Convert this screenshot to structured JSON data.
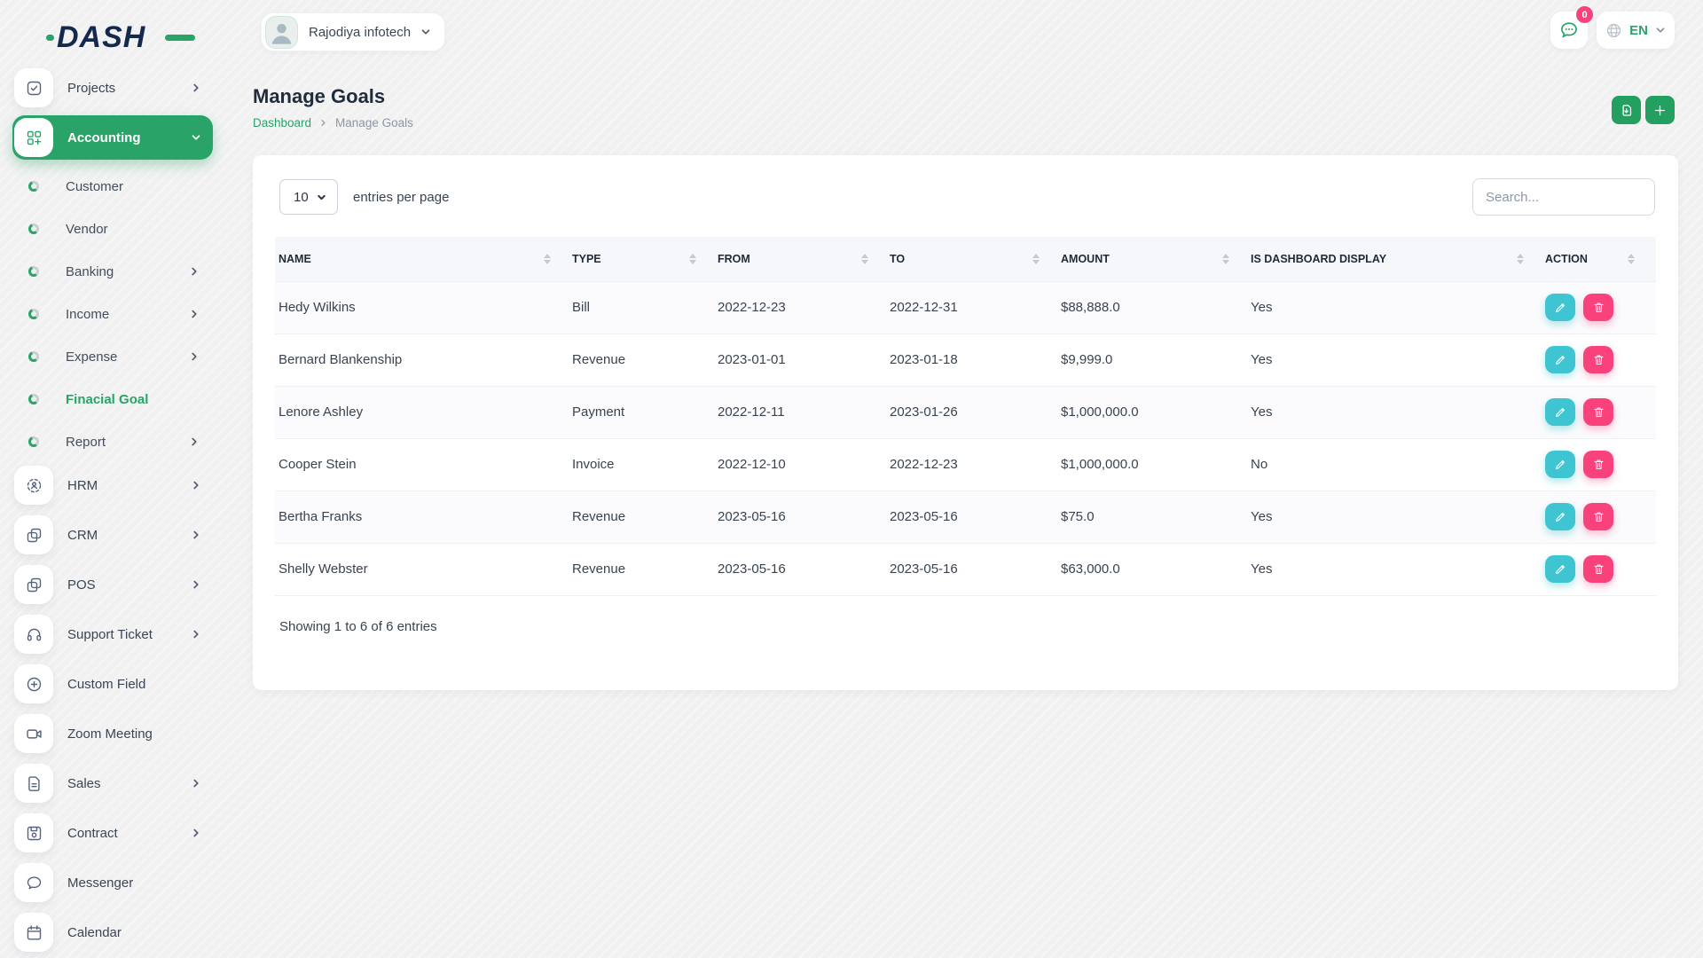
{
  "brand": {
    "logo_text": "DASH",
    "logo_icon": "dash-logo"
  },
  "header": {
    "company": "Rajodiya infotech",
    "company_avatar_icon": "person-icon",
    "notification_icon": "chat-bubble-icon",
    "notification_badge": "0",
    "language_icon": "globe-icon",
    "language": "EN"
  },
  "sidebar": {
    "items": [
      {
        "label": "Projects",
        "type": "main",
        "icon": "checkbox-icon",
        "chevron": "right",
        "active": false
      },
      {
        "label": "Accounting",
        "type": "main",
        "icon": "grid-plus-icon",
        "chevron": "down",
        "active": true
      },
      {
        "label": "Customer",
        "type": "sub"
      },
      {
        "label": "Vendor",
        "type": "sub"
      },
      {
        "label": "Banking",
        "type": "sub",
        "chevron": "right"
      },
      {
        "label": "Income",
        "type": "sub",
        "chevron": "right"
      },
      {
        "label": "Expense",
        "type": "sub",
        "chevron": "right"
      },
      {
        "label": "Finacial Goal",
        "type": "sub",
        "active": true
      },
      {
        "label": "Report",
        "type": "sub",
        "chevron": "right"
      },
      {
        "label": "HRM",
        "type": "main",
        "icon": "hrm-icon",
        "chevron": "right"
      },
      {
        "label": "CRM",
        "type": "main",
        "icon": "crm-icon",
        "chevron": "right"
      },
      {
        "label": "POS",
        "type": "main",
        "icon": "pos-icon",
        "chevron": "right"
      },
      {
        "label": "Support Ticket",
        "type": "main",
        "icon": "headset-icon",
        "chevron": "right"
      },
      {
        "label": "Custom Field",
        "type": "main",
        "icon": "plus-circle-icon"
      },
      {
        "label": "Zoom Meeting",
        "type": "main",
        "icon": "video-icon"
      },
      {
        "label": "Sales",
        "type": "main",
        "icon": "file-icon",
        "chevron": "right"
      },
      {
        "label": "Contract",
        "type": "main",
        "icon": "save-icon",
        "chevron": "right"
      },
      {
        "label": "Messenger",
        "type": "main",
        "icon": "chat-icon"
      },
      {
        "label": "Calendar",
        "type": "main",
        "icon": "calendar-icon"
      }
    ]
  },
  "page": {
    "title": "Manage Goals",
    "breadcrumb_home": "Dashboard",
    "breadcrumb_current": "Manage Goals",
    "action_icons": [
      "copy-export-icon",
      "plus-icon"
    ]
  },
  "toolbar": {
    "entries_value": "10",
    "entries_label": "entries per page",
    "search_placeholder": "Search..."
  },
  "table": {
    "columns": [
      "NAME",
      "TYPE",
      "FROM",
      "TO",
      "AMOUNT",
      "IS DASHBOARD DISPLAY",
      "ACTION"
    ],
    "rows": [
      {
        "name": "Hedy Wilkins",
        "type": "Bill",
        "from": "2022-12-23",
        "to": "2022-12-31",
        "amount": "$88,888.0",
        "dashboard": "Yes"
      },
      {
        "name": "Bernard Blankenship",
        "type": "Revenue",
        "from": "2023-01-01",
        "to": "2023-01-18",
        "amount": "$9,999.0",
        "dashboard": "Yes"
      },
      {
        "name": "Lenore Ashley",
        "type": "Payment",
        "from": "2022-12-11",
        "to": "2023-01-26",
        "amount": "$1,000,000.0",
        "dashboard": "Yes"
      },
      {
        "name": "Cooper Stein",
        "type": "Invoice",
        "from": "2022-12-10",
        "to": "2022-12-23",
        "amount": "$1,000,000.0",
        "dashboard": "No"
      },
      {
        "name": "Bertha Franks",
        "type": "Revenue",
        "from": "2023-05-16",
        "to": "2023-05-16",
        "amount": "$75.0",
        "dashboard": "Yes"
      },
      {
        "name": "Shelly Webster",
        "type": "Revenue",
        "from": "2023-05-16",
        "to": "2023-05-16",
        "amount": "$63,000.0",
        "dashboard": "Yes"
      }
    ],
    "action_icons": [
      "pencil-icon",
      "trash-icon"
    ],
    "footer": "Showing 1 to 6 of 6 entries"
  },
  "colors": {
    "accent_green": "#2aa368",
    "button_green": "#23a05f",
    "edit_teal": "#3fc5d2",
    "delete_pink": "#f9417b",
    "logo_navy": "#14294b",
    "table_header_bg": "#f6f7fb"
  }
}
